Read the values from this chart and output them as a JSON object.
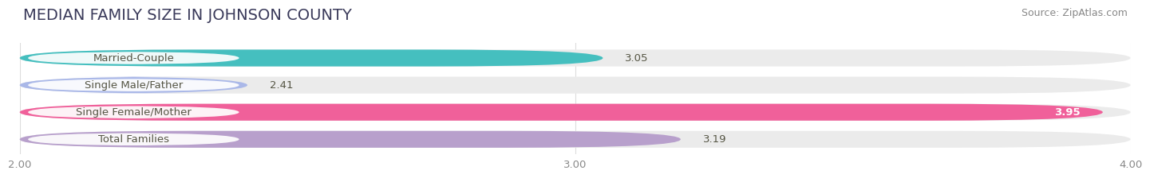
{
  "title": "MEDIAN FAMILY SIZE IN JOHNSON COUNTY",
  "source": "Source: ZipAtlas.com",
  "categories": [
    "Married-Couple",
    "Single Male/Father",
    "Single Female/Mother",
    "Total Families"
  ],
  "values": [
    3.05,
    2.41,
    3.95,
    3.19
  ],
  "bar_colors": [
    "#45bfbf",
    "#aab8e8",
    "#f0609a",
    "#b8a0cc"
  ],
  "value_labels": [
    "3.05",
    "2.41",
    "3.95",
    "3.19"
  ],
  "value_inside": [
    false,
    false,
    true,
    false
  ],
  "xlim": [
    2.0,
    4.0
  ],
  "xticks": [
    2.0,
    3.0,
    4.0
  ],
  "xtick_labels": [
    "2.00",
    "3.00",
    "4.00"
  ],
  "background_color": "#ffffff",
  "bar_bg_color": "#ebebeb",
  "title_fontsize": 14,
  "source_fontsize": 9,
  "label_fontsize": 9.5,
  "value_fontsize": 9.5,
  "title_color": "#3a3a5a",
  "source_color": "#888888",
  "label_color": "#555544",
  "value_color_outside": "#555544",
  "value_color_inside": "#ffffff"
}
